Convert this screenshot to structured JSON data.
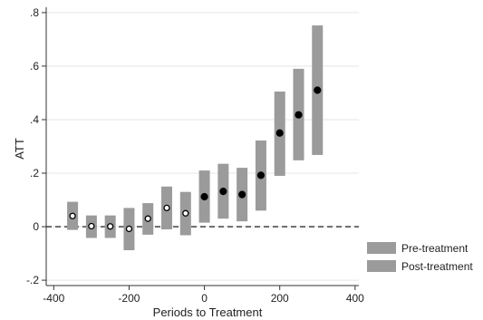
{
  "chart_data": {
    "type": "scatter",
    "xlabel": "Periods to Treatment",
    "ylabel": "ATT",
    "xlim": [
      -420,
      410
    ],
    "ylim": [
      -0.22,
      0.82
    ],
    "x_ticks": [
      -400,
      -200,
      0,
      200,
      400
    ],
    "x_tick_labels": [
      "-400",
      "-200",
      "0",
      "200",
      "400"
    ],
    "y_ticks": [
      -0.2,
      0,
      0.2,
      0.4,
      0.6,
      0.8
    ],
    "y_tick_labels": [
      "-.2",
      "0",
      ".2",
      ".4",
      ".6",
      ".8"
    ],
    "grid": "horizontal",
    "reference_line": {
      "y": 0,
      "style": "dashed"
    },
    "legend": {
      "position": "right",
      "entries": [
        "Pre-treatment",
        "Post-treatment"
      ]
    },
    "series": [
      {
        "name": "Pre-treatment",
        "marker": "hollow-circle",
        "points": [
          {
            "x": -350,
            "y": 0.04,
            "lo": -0.012,
            "hi": 0.093
          },
          {
            "x": -300,
            "y": 0.002,
            "lo": -0.042,
            "hi": 0.042
          },
          {
            "x": -250,
            "y": 0.001,
            "lo": -0.042,
            "hi": 0.042
          },
          {
            "x": -200,
            "y": -0.008,
            "lo": -0.088,
            "hi": 0.07
          },
          {
            "x": -150,
            "y": 0.03,
            "lo": -0.03,
            "hi": 0.088
          },
          {
            "x": -100,
            "y": 0.07,
            "lo": -0.01,
            "hi": 0.15
          },
          {
            "x": -50,
            "y": 0.05,
            "lo": -0.032,
            "hi": 0.13
          }
        ]
      },
      {
        "name": "Post-treatment",
        "marker": "filled-circle",
        "points": [
          {
            "x": 0,
            "y": 0.112,
            "lo": 0.015,
            "hi": 0.21
          },
          {
            "x": 50,
            "y": 0.132,
            "lo": 0.03,
            "hi": 0.235
          },
          {
            "x": 100,
            "y": 0.12,
            "lo": 0.02,
            "hi": 0.22
          },
          {
            "x": 150,
            "y": 0.192,
            "lo": 0.06,
            "hi": 0.322
          },
          {
            "x": 200,
            "y": 0.35,
            "lo": 0.19,
            "hi": 0.505
          },
          {
            "x": 250,
            "y": 0.418,
            "lo": 0.248,
            "hi": 0.59
          },
          {
            "x": 300,
            "y": 0.51,
            "lo": 0.268,
            "hi": 0.752
          }
        ]
      }
    ],
    "colors": {
      "ci_bar": "#9b9b9b",
      "marker": "#000000",
      "grid": "#e6e6e6",
      "axis": "#333333"
    }
  }
}
